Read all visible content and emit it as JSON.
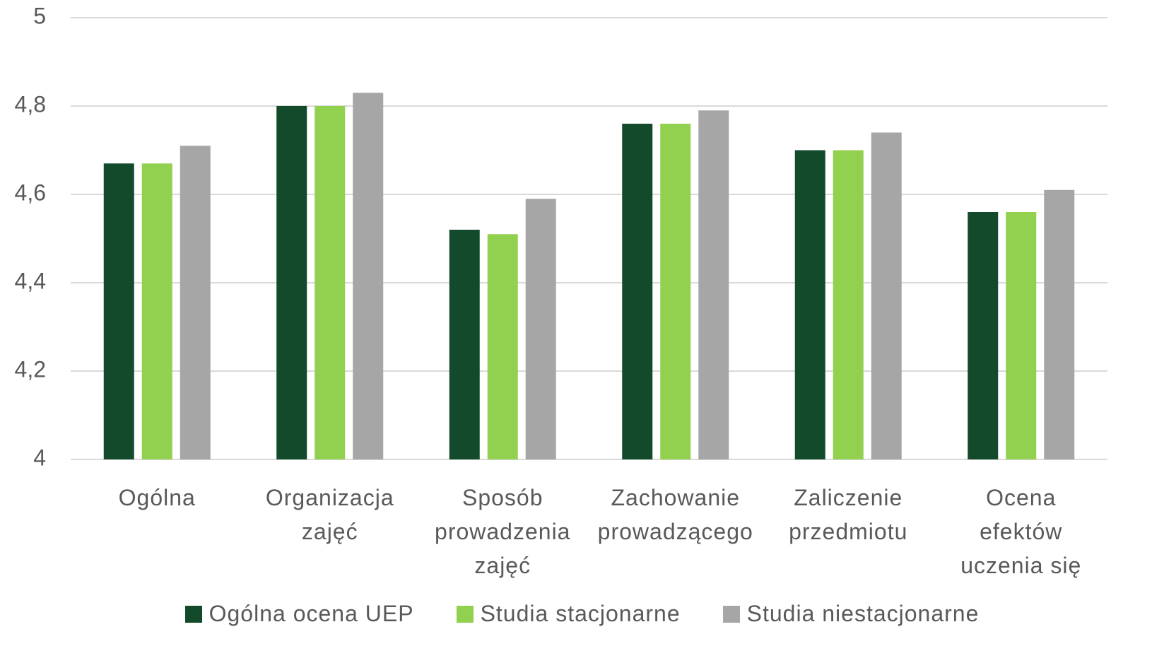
{
  "chart_data": {
    "type": "bar",
    "categories": [
      "Ogólna",
      "Organizacja\nzajęć",
      "Sposób\nprowadzenia\nzajęć",
      "Zachowanie\nprowadzącego",
      "Zaliczenie\nprzedmiotu",
      "Ocena\nefektów\nuczenia się"
    ],
    "series": [
      {
        "name": "Ogólna ocena UEP",
        "color": "#134a2c",
        "values": [
          4.67,
          4.8,
          4.52,
          4.76,
          4.7,
          4.56
        ]
      },
      {
        "name": "Studia stacjonarne",
        "color": "#92d050",
        "values": [
          4.67,
          4.8,
          4.51,
          4.76,
          4.7,
          4.56
        ]
      },
      {
        "name": "Studia niestacjonarne",
        "color": "#a6a6a6",
        "values": [
          4.71,
          4.83,
          4.59,
          4.79,
          4.74,
          4.61
        ]
      }
    ],
    "ylim": [
      4,
      5
    ],
    "yticks": [
      4,
      {
        "value": 4.2,
        "label": "4,2"
      },
      {
        "value": 4.4,
        "label": "4,4"
      },
      {
        "value": 4.6,
        "label": "4,6"
      },
      {
        "value": 4.8,
        "label": "4,8"
      },
      5
    ],
    "grid": true,
    "legend": "bottom"
  }
}
